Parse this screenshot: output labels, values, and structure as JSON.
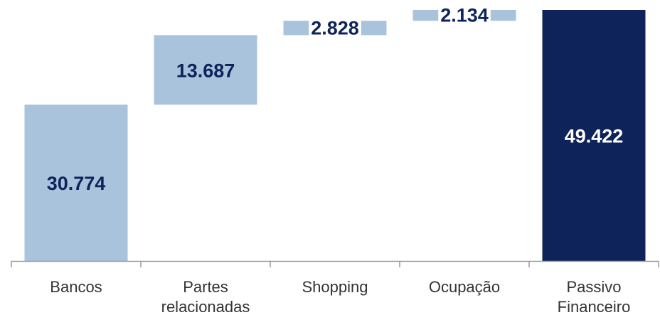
{
  "chart_data": {
    "type": "waterfall",
    "title": "",
    "categories": [
      [
        "Bancos"
      ],
      [
        "Partes",
        "relacionadas"
      ],
      [
        "Shopping"
      ],
      [
        "Ocupação"
      ],
      [
        "Passivo",
        "Financeiro"
      ]
    ],
    "steps": [
      {
        "value": 30774,
        "label": "30.774",
        "kind": "increment"
      },
      {
        "value": 13687,
        "label": "13.687",
        "kind": "increment"
      },
      {
        "value": 2828,
        "label": "2.828",
        "kind": "increment"
      },
      {
        "value": 2134,
        "label": "2.134",
        "kind": "increment"
      },
      {
        "value": 49422,
        "label": "49.422",
        "kind": "total"
      }
    ],
    "ylim": [
      0,
      49422
    ],
    "grid": false,
    "legend": "none",
    "colors": {
      "increment": "#a9c3dc",
      "total": "#0d2359",
      "label_dark": "#0d2359",
      "label_light": "#ffffff",
      "axis": "#999999",
      "category_text": "#333333"
    }
  }
}
